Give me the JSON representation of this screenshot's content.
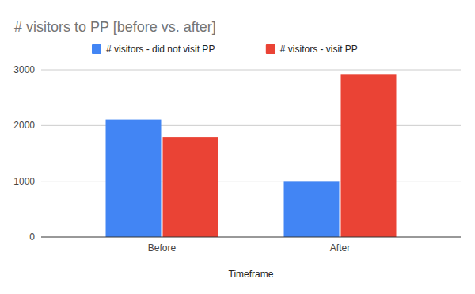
{
  "chart_data": {
    "type": "bar",
    "title": "# visitors to PP [before vs. after]",
    "x_label": "Timeframe",
    "categories": [
      "Before",
      "After"
    ],
    "series": [
      {
        "name": "# visitors - did not visit PP",
        "color": "#4285f4",
        "values": [
          2110,
          990
        ]
      },
      {
        "name": "# visitors - visit PP",
        "color": "#ea4335",
        "values": [
          1790,
          2910
        ]
      }
    ],
    "ylim": [
      0,
      3000
    ],
    "yticks": [
      0,
      1000,
      2000,
      3000
    ],
    "grid": true,
    "legend": "top"
  }
}
